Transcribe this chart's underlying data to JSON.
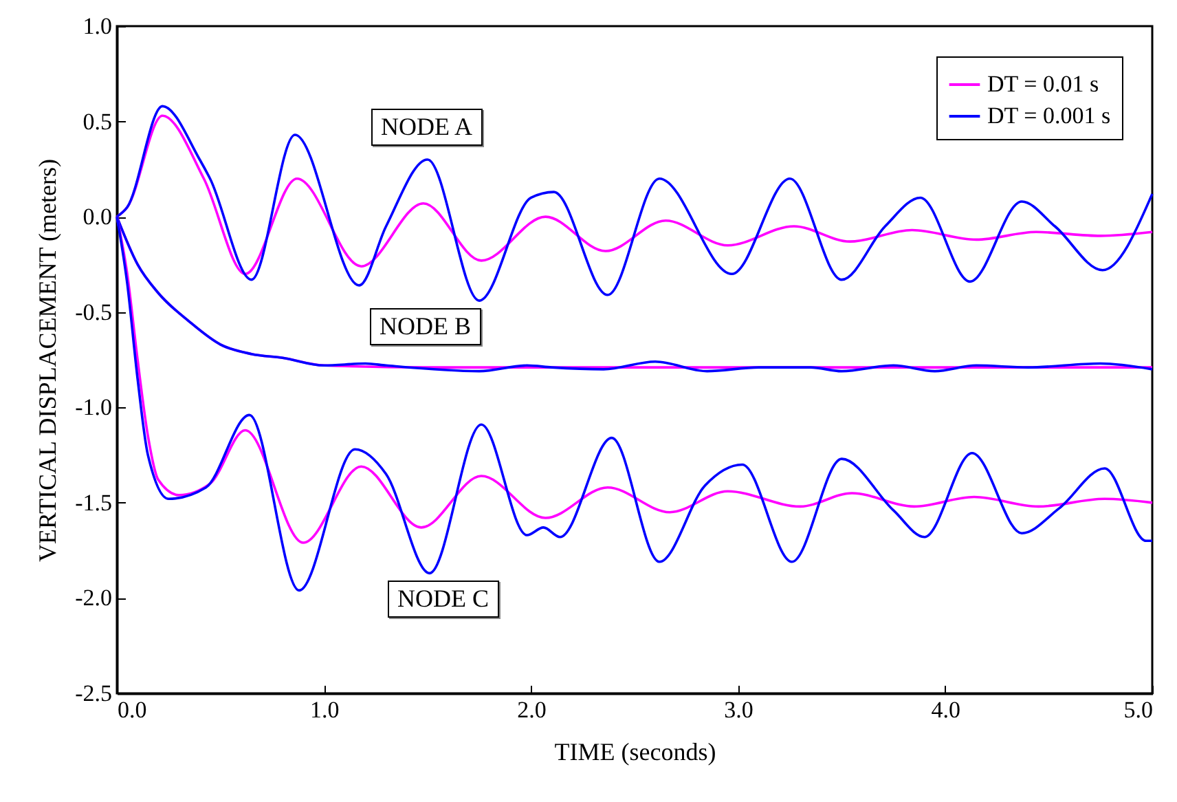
{
  "chart_data": {
    "type": "line",
    "xlabel": "TIME (seconds)",
    "ylabel": "VERTICAL DISPLACEMENT (meters)",
    "xlim": [
      0,
      5
    ],
    "ylim": [
      -2.5,
      1
    ],
    "xticks": [
      {
        "value": 0,
        "label": "0.0"
      },
      {
        "value": 1,
        "label": "1.0"
      },
      {
        "value": 2,
        "label": "2.0"
      },
      {
        "value": 3,
        "label": "3.0"
      },
      {
        "value": 4,
        "label": "4.0"
      },
      {
        "value": 5,
        "label": "5.0"
      }
    ],
    "yticks": [
      {
        "value": -2.5,
        "label": "-2.5"
      },
      {
        "value": -2,
        "label": "-2.0"
      },
      {
        "value": -1.5,
        "label": "-1.5"
      },
      {
        "value": -1,
        "label": "-1.0"
      },
      {
        "value": -0.5,
        "label": "-0.5"
      },
      {
        "value": 0,
        "label": "0.0"
      },
      {
        "value": 0.5,
        "label": "0.5"
      },
      {
        "value": 1,
        "label": "1.0"
      }
    ],
    "legend": "top right",
    "grid": false,
    "marker": "none",
    "line_style": "solid",
    "series": [
      {
        "name": "DT = 0.01 s",
        "color": "#ff00ff",
        "x": [
          0,
          0.05,
          0.22,
          0.42,
          0.62,
          0.87,
          1.18,
          1.48,
          1.76,
          2.07,
          2.36,
          2.65,
          2.95,
          3.27,
          3.54,
          3.84,
          4.15,
          4.44,
          4.75,
          5.0
        ],
        "values": [
          0,
          0.05,
          0.53,
          0.2,
          -0.3,
          0.2,
          -0.26,
          0.07,
          -0.23,
          0.0,
          -0.18,
          -0.02,
          -0.15,
          -0.05,
          -0.13,
          -0.07,
          -0.12,
          -0.08,
          -0.1,
          -0.08
        ]
      },
      {
        "name": "DT = 0.001 s",
        "color": "#0000ff",
        "x": [
          0,
          0.05,
          0.22,
          0.4,
          0.45,
          0.65,
          0.86,
          1.17,
          1.3,
          1.5,
          1.75,
          2.0,
          2.11,
          2.37,
          2.62,
          2.97,
          3.25,
          3.5,
          3.71,
          3.88,
          4.12,
          4.37,
          4.53,
          4.76,
          5.0
        ],
        "values": [
          0,
          0.05,
          0.58,
          0.3,
          0.2,
          -0.33,
          0.43,
          -0.36,
          -0.05,
          0.3,
          -0.44,
          0.1,
          0.13,
          -0.41,
          0.2,
          -0.3,
          0.2,
          -0.33,
          -0.05,
          0.1,
          -0.34,
          0.08,
          -0.05,
          -0.28,
          0.12
        ]
      },
      {
        "color": "#ff00ff",
        "x": [
          0,
          0.1,
          0.2,
          0.35,
          0.5,
          0.65,
          0.8,
          1.0,
          1.5,
          2.0,
          3.0,
          4.0,
          5.0
        ],
        "values": [
          0,
          -0.25,
          -0.4,
          -0.55,
          -0.67,
          -0.72,
          -0.74,
          -0.78,
          -0.79,
          -0.79,
          -0.79,
          -0.79,
          -0.79
        ]
      },
      {
        "color": "#0000ff",
        "x": [
          0,
          0.1,
          0.2,
          0.35,
          0.5,
          0.65,
          0.8,
          1.0,
          1.2,
          1.3,
          1.75,
          1.98,
          2.1,
          2.35,
          2.6,
          2.85,
          3.1,
          3.35,
          3.5,
          3.75,
          3.95,
          4.15,
          4.4,
          4.75,
          5.0
        ],
        "values": [
          0,
          -0.25,
          -0.4,
          -0.55,
          -0.67,
          -0.72,
          -0.74,
          -0.78,
          -0.77,
          -0.78,
          -0.81,
          -0.78,
          -0.79,
          -0.8,
          -0.76,
          -0.81,
          -0.79,
          -0.79,
          -0.81,
          -0.78,
          -0.81,
          -0.78,
          -0.79,
          -0.77,
          -0.8
        ]
      },
      {
        "color": "#ff00ff",
        "x": [
          0,
          0.05,
          0.1,
          0.15,
          0.2,
          0.3,
          0.45,
          0.62,
          0.9,
          1.18,
          1.47,
          1.76,
          2.07,
          2.37,
          2.67,
          2.95,
          3.3,
          3.55,
          3.85,
          4.14,
          4.45,
          4.77,
          5.0
        ],
        "values": [
          0,
          -0.3,
          -0.75,
          -1.15,
          -1.38,
          -1.46,
          -1.4,
          -1.12,
          -1.71,
          -1.31,
          -1.63,
          -1.36,
          -1.58,
          -1.42,
          -1.55,
          -1.44,
          -1.52,
          -1.45,
          -1.52,
          -1.47,
          -1.52,
          -1.48,
          -1.5
        ]
      },
      {
        "color": "#0000ff",
        "x": [
          0,
          0.05,
          0.1,
          0.15,
          0.25,
          0.43,
          0.64,
          0.88,
          1.15,
          1.3,
          1.51,
          1.76,
          1.98,
          2.06,
          2.14,
          2.39,
          2.62,
          2.84,
          3.02,
          3.26,
          3.5,
          3.75,
          3.9,
          4.13,
          4.37,
          4.55,
          4.77,
          4.97,
          5.0
        ],
        "values": [
          0,
          -0.35,
          -0.85,
          -1.25,
          -1.48,
          -1.42,
          -1.04,
          -1.96,
          -1.22,
          -1.35,
          -1.87,
          -1.09,
          -1.67,
          -1.63,
          -1.68,
          -1.16,
          -1.81,
          -1.41,
          -1.3,
          -1.81,
          -1.27,
          -1.54,
          -1.68,
          -1.24,
          -1.66,
          -1.53,
          -1.32,
          -1.7,
          -1.7
        ]
      }
    ],
    "annotations": [
      "NODE A",
      "NODE B",
      "NODE C"
    ]
  }
}
